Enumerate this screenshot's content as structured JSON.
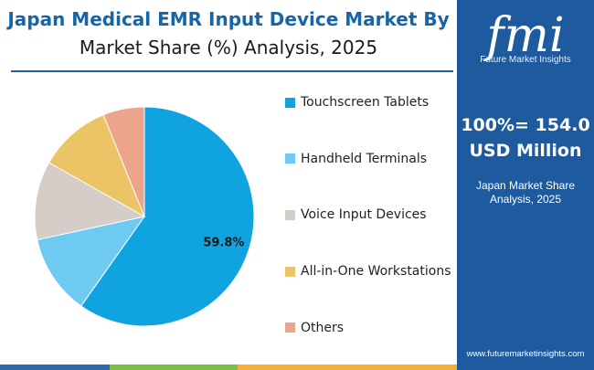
{
  "title_line1": "Japan Medical EMR Input Device Market By",
  "title_line2": "Market Share (%) Analysis, 2025",
  "side_panel": {
    "logo_text": "fmi",
    "logo_sub": "Future Market Insights",
    "total_line1": "100%= 154.0",
    "total_line2": "USD Million",
    "sub_line1": "Japan Market Share",
    "sub_line2": "Analysis, 2025",
    "url": "www.futuremarketinsights.com",
    "color": "#1e5a9e"
  },
  "chart_data": {
    "type": "pie",
    "start_angle_deg": 0,
    "direction": "clockwise",
    "slices": [
      {
        "label": "Touchscreen Tablets",
        "value": 59.8,
        "color": "#0fa3df",
        "data_label": "59.8%"
      },
      {
        "label": "Handheld Terminals",
        "value": 11.8,
        "color": "#6fcaf1",
        "data_label": ""
      },
      {
        "label": "Voice Input Devices",
        "value": 11.6,
        "color": "#d5cdc7",
        "data_label": ""
      },
      {
        "label": "All-in-One Workstations",
        "value": 10.7,
        "color": "#ebc465",
        "data_label": ""
      },
      {
        "label": "Others",
        "value": 6.1,
        "color": "#eda48c",
        "data_label": ""
      }
    ],
    "legend_position": "right"
  },
  "bottom_bar_colors": [
    "#2e6ab0",
    "#7bc043",
    "#f2b134",
    "#1e5a9e"
  ]
}
